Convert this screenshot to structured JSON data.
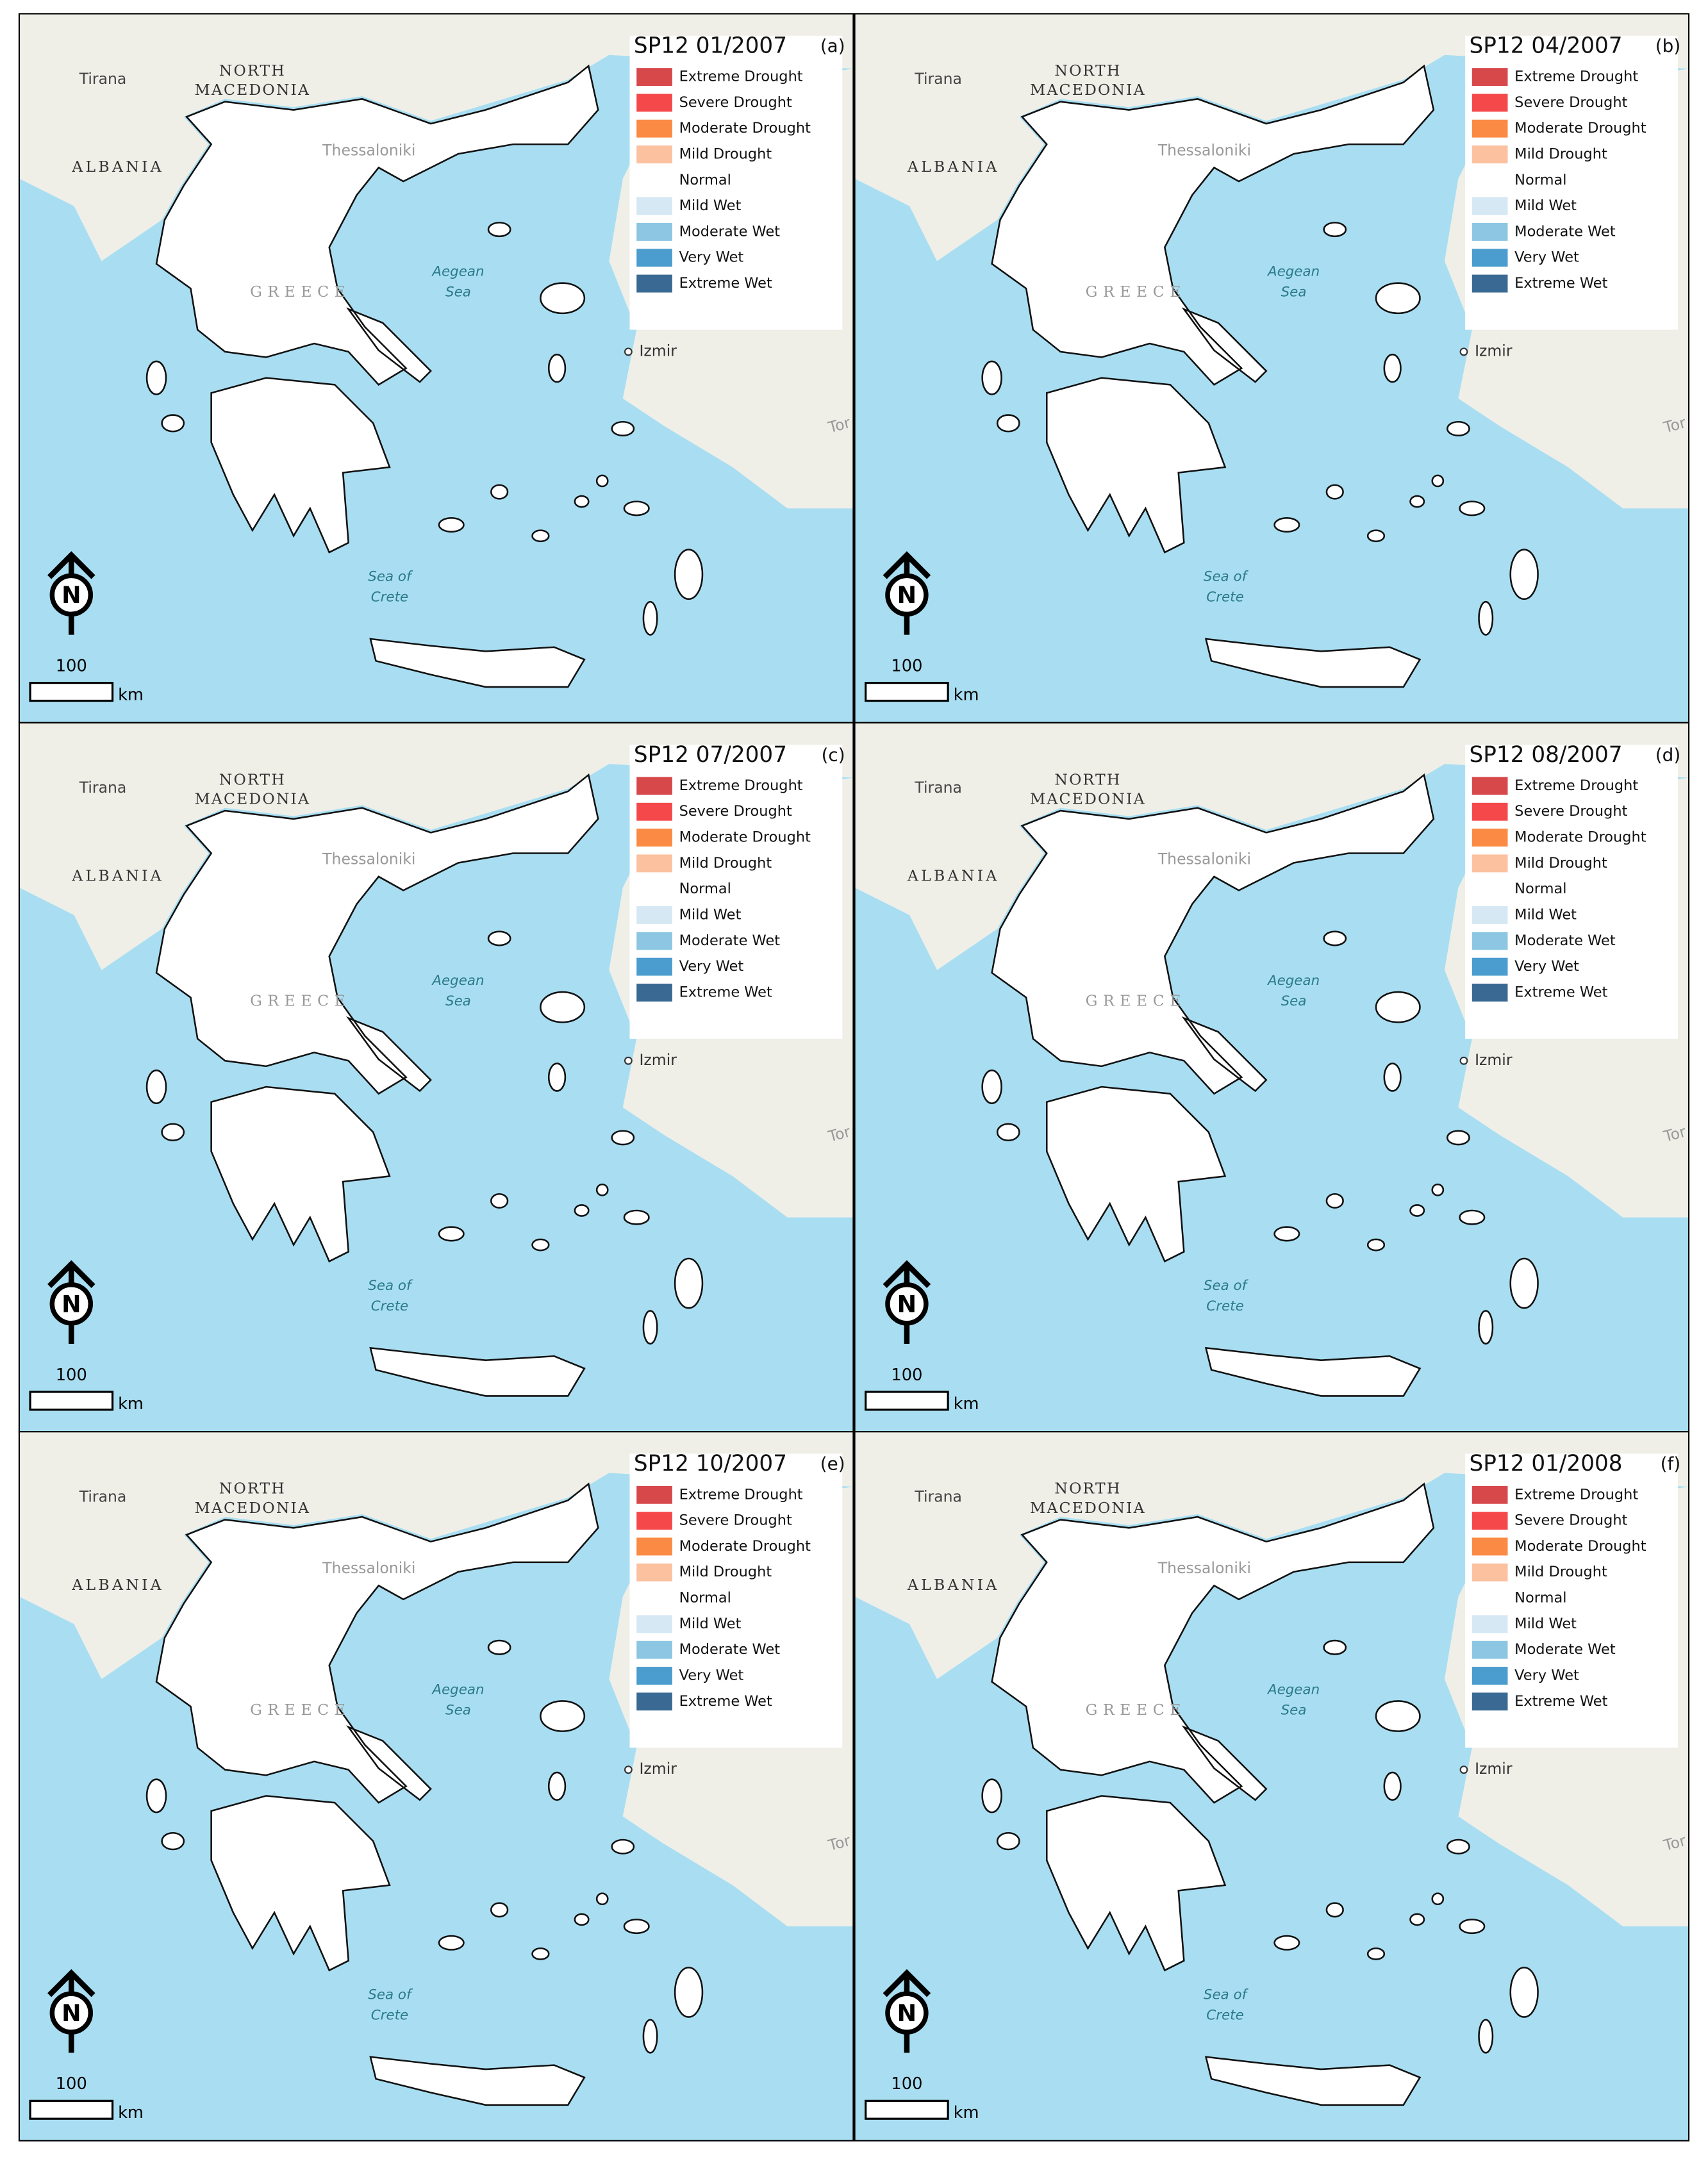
{
  "panels": [
    {
      "title": "SP12 01/2007",
      "label": "(a)"
    },
    {
      "title": "SP12 04/2007",
      "label": "(b)"
    },
    {
      "title": "SP12 07/2007",
      "label": "(c)"
    },
    {
      "title": "SP12 08/2007",
      "label": "(d)"
    },
    {
      "title": "SP12 10/2007",
      "label": "(e)"
    },
    {
      "title": "SP12 01/2008",
      "label": "(f)"
    }
  ],
  "legend": {
    "items": [
      {
        "label": "Extreme Drought",
        "color": "#d7484b"
      },
      {
        "label": "Severe Drought",
        "color": "#f4484a"
      },
      {
        "label": "Moderate Drought",
        "color": "#fb8a44"
      },
      {
        "label": "Mild Drought",
        "color": "#fcc19f"
      },
      {
        "label": "Normal",
        "color": "#ffffff"
      },
      {
        "label": "Mild Wet",
        "color": "#d5e8f3"
      },
      {
        "label": "Moderate Wet",
        "color": "#8cc6e2"
      },
      {
        "label": "Very Wet",
        "color": "#4b9ccf"
      },
      {
        "label": "Extreme Wet",
        "color": "#3a6a93"
      }
    ]
  },
  "places": {
    "tirana": "Tirana",
    "north": "NORTH",
    "macedonia": "MACEDONIA",
    "albania": "ALBANIA",
    "thessaloniki": "Thessaloniki",
    "greece": "GREECE",
    "aegean": "Aegean",
    "sea": "Sea",
    "izmir": "Izmir",
    "sea_of": "Sea of",
    "crete": "Crete",
    "tor": "Tor"
  },
  "north_arrow": "N",
  "scale_bar": {
    "distance": "100",
    "unit": "km"
  }
}
